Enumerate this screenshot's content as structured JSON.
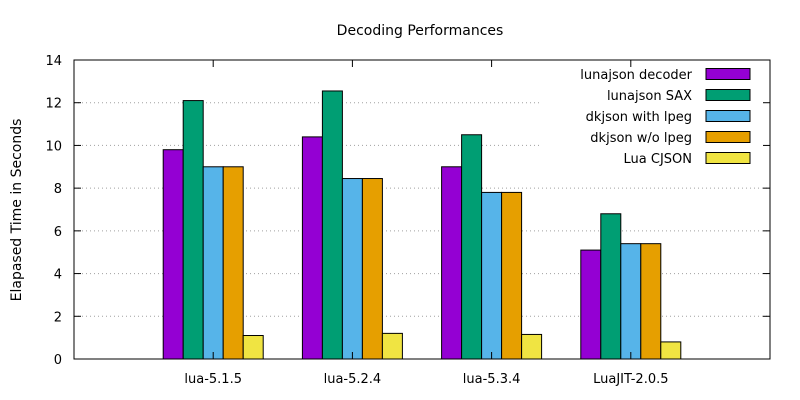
{
  "chart_data": {
    "type": "bar",
    "title": "Decoding Performances",
    "xlabel": "",
    "ylabel": "Elapased Time in Seconds",
    "ylim": [
      0,
      14
    ],
    "yticks": [
      0,
      2,
      4,
      6,
      8,
      10,
      12,
      14
    ],
    "grid": true,
    "legend_position": "top-right",
    "categories": [
      "lua-5.1.5",
      "lua-5.2.4",
      "lua-5.3.4",
      "LuaJIT-2.0.5"
    ],
    "series": [
      {
        "name": "lunajson decoder",
        "color": "#9400d3",
        "values": [
          9.8,
          10.4,
          9.0,
          5.1
        ]
      },
      {
        "name": "lunajson SAX",
        "color": "#009e73",
        "values": [
          12.1,
          12.55,
          10.5,
          6.8
        ]
      },
      {
        "name": "dkjson with lpeg",
        "color": "#56b4e9",
        "values": [
          9.0,
          8.45,
          7.8,
          5.4
        ]
      },
      {
        "name": "dkjson w/o lpeg",
        "color": "#e69f00",
        "values": [
          9.0,
          8.45,
          7.8,
          5.4
        ]
      },
      {
        "name": "Lua CJSON",
        "color": "#f0e442",
        "values": [
          1.1,
          1.2,
          1.15,
          0.8
        ]
      }
    ]
  }
}
